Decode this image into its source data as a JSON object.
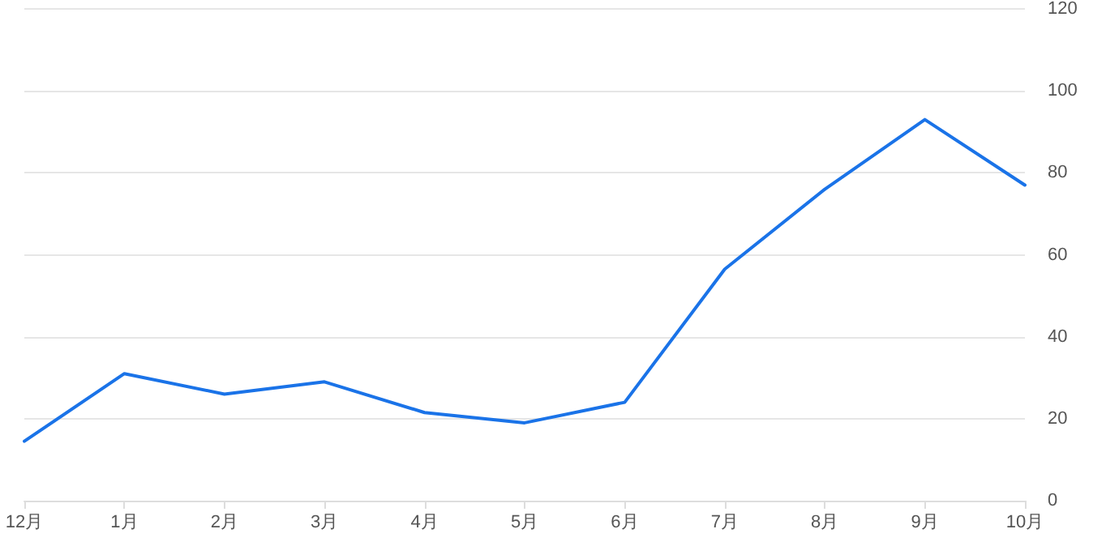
{
  "chart_data": {
    "type": "line",
    "categories": [
      "12月",
      "1月",
      "2月",
      "3月",
      "4月",
      "5月",
      "6月",
      "7月",
      "8月",
      "9月",
      "10月"
    ],
    "series": [
      {
        "color": "#1a73e8",
        "values": [
          14.5,
          31,
          26,
          29,
          21.5,
          19,
          24,
          56.5,
          76,
          93,
          77
        ]
      }
    ],
    "ylim": [
      0,
      120
    ],
    "yticks": [
      0,
      20,
      40,
      60,
      80,
      100,
      120
    ],
    "grid": "y",
    "marker": "none",
    "line_style": "solid"
  }
}
